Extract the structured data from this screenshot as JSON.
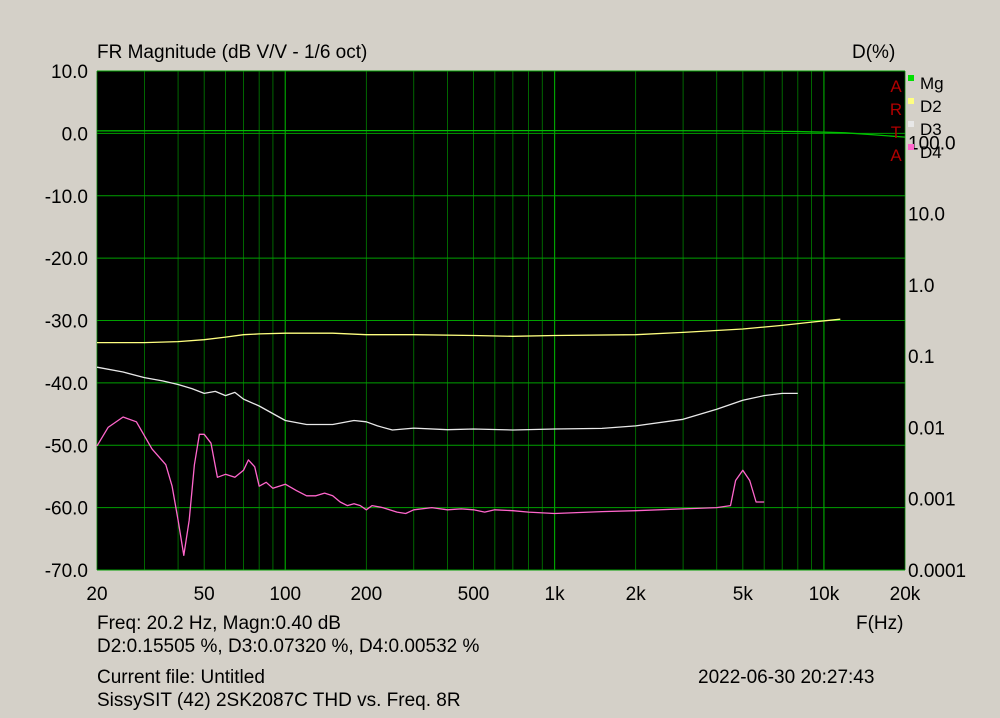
{
  "colors": {
    "background": "#d4d0c8",
    "plot_bg": "#000000",
    "grid": "#008000",
    "grid_major": "#00a000",
    "Mg": "#00c000",
    "D2": "#ffff80",
    "D3": "#e8e8e8",
    "D4": "#ff66cc",
    "arta": "#b00000"
  },
  "header": {
    "title": "FR Magnitude (dB V/V - 1/6 oct)",
    "right_label": "D(%)"
  },
  "watermark": [
    "A",
    "R",
    "T",
    "A"
  ],
  "legend": [
    {
      "name": "Mg",
      "color": "#00e000"
    },
    {
      "name": "D2",
      "color": "#ffff80"
    },
    {
      "name": "D3",
      "color": "#e8e8e8"
    },
    {
      "name": "D4",
      "color": "#ff66cc"
    }
  ],
  "footer": {
    "freq_unit": "F(Hz)",
    "cursor_line": "Freq: 20.2 Hz, Magn:0.40 dB",
    "distortion_line": "D2:0.15505 %, D3:0.07320 %, D4:0.00532 %",
    "current_file": "Current file: Untitled",
    "datetime": "2022-06-30  20:27:43",
    "description": "SissySIT (42) 2SK2087C THD vs.  Freq. 8R"
  },
  "chart_data": {
    "type": "line",
    "x_scale": "log",
    "xlim": [
      20,
      20000
    ],
    "ylim": [
      -70,
      10
    ],
    "y2_scale": "log",
    "y2lim": [
      0.0001,
      1000
    ],
    "grid": true,
    "legend_position": "top-right",
    "x_ticks": [
      {
        "v": 20,
        "label": "20"
      },
      {
        "v": 50,
        "label": "50"
      },
      {
        "v": 100,
        "label": "100"
      },
      {
        "v": 200,
        "label": "200"
      },
      {
        "v": 500,
        "label": "500"
      },
      {
        "v": 1000,
        "label": "1k"
      },
      {
        "v": 2000,
        "label": "2k"
      },
      {
        "v": 5000,
        "label": "5k"
      },
      {
        "v": 10000,
        "label": "10k"
      },
      {
        "v": 20000,
        "label": "20k"
      }
    ],
    "y_ticks": [
      {
        "v": 10,
        "label": "10.0"
      },
      {
        "v": 0,
        "label": "0.0"
      },
      {
        "v": -10,
        "label": "-10.0"
      },
      {
        "v": -20,
        "label": "-20.0"
      },
      {
        "v": -30,
        "label": "-30.0"
      },
      {
        "v": -40,
        "label": "-40.0"
      },
      {
        "v": -50,
        "label": "-50.0"
      },
      {
        "v": -60,
        "label": "-60.0"
      },
      {
        "v": -70,
        "label": "-70.0"
      }
    ],
    "y2_ticks": [
      {
        "v": 100,
        "label": "100.0"
      },
      {
        "v": 10,
        "label": "10.0"
      },
      {
        "v": 1,
        "label": "1.0"
      },
      {
        "v": 0.1,
        "label": "0.1"
      },
      {
        "v": 0.01,
        "label": "0.01"
      },
      {
        "v": 0.001,
        "label": "0.001"
      },
      {
        "v": 0.0001,
        "label": "0.0001"
      }
    ],
    "series": [
      {
        "name": "Mg",
        "color": "#00c000",
        "axis": "left",
        "x": [
          20,
          50,
          100,
          200,
          500,
          1000,
          2000,
          5000,
          8000,
          10000,
          12000,
          15000,
          20000
        ],
        "y": [
          0.4,
          0.45,
          0.45,
          0.45,
          0.45,
          0.45,
          0.45,
          0.4,
          0.3,
          0.2,
          0.1,
          -0.2,
          -0.6
        ]
      },
      {
        "name": "D2",
        "color": "#ffff80",
        "axis": "right",
        "x": [
          20,
          30,
          40,
          50,
          60,
          70,
          80,
          100,
          150,
          200,
          300,
          500,
          700,
          1000,
          2000,
          3000,
          5000,
          7000,
          9000,
          11500
        ],
        "y": [
          0.155,
          0.155,
          0.16,
          0.17,
          0.185,
          0.2,
          0.205,
          0.21,
          0.21,
          0.2,
          0.2,
          0.195,
          0.19,
          0.195,
          0.2,
          0.215,
          0.24,
          0.27,
          0.3,
          0.33
        ]
      },
      {
        "name": "D3",
        "color": "#e8e8e8",
        "axis": "right",
        "x": [
          20,
          25,
          30,
          35,
          40,
          45,
          50,
          55,
          60,
          65,
          70,
          80,
          100,
          120,
          150,
          180,
          200,
          220,
          250,
          300,
          400,
          500,
          700,
          1000,
          1500,
          2000,
          3000,
          4000,
          5000,
          6000,
          7000,
          8000
        ],
        "y": [
          0.07,
          0.06,
          0.05,
          0.045,
          0.04,
          0.035,
          0.03,
          0.032,
          0.028,
          0.031,
          0.025,
          0.02,
          0.0125,
          0.011,
          0.011,
          0.0125,
          0.012,
          0.0105,
          0.0092,
          0.0098,
          0.0093,
          0.0095,
          0.0092,
          0.0095,
          0.0097,
          0.0105,
          0.013,
          0.018,
          0.024,
          0.028,
          0.03,
          0.03
        ]
      },
      {
        "name": "D4",
        "color": "#ff66cc",
        "axis": "right",
        "x": [
          20,
          22,
          25,
          28,
          32,
          36,
          38,
          40,
          42,
          44,
          46,
          48,
          50,
          53,
          56,
          60,
          65,
          70,
          73,
          77,
          80,
          85,
          90,
          100,
          110,
          120,
          130,
          140,
          150,
          160,
          170,
          180,
          190,
          200,
          210,
          230,
          260,
          280,
          300,
          350,
          400,
          450,
          500,
          550,
          600,
          700,
          800,
          1000,
          1500,
          2000,
          3000,
          4000,
          4500,
          4700,
          5000,
          5300,
          5600,
          6000
        ],
        "y": [
          0.0055,
          0.01,
          0.014,
          0.012,
          0.005,
          0.003,
          0.0015,
          0.0005,
          0.00016,
          0.0005,
          0.003,
          0.008,
          0.008,
          0.006,
          0.002,
          0.0022,
          0.002,
          0.0025,
          0.0035,
          0.0028,
          0.0015,
          0.0017,
          0.0014,
          0.0016,
          0.0013,
          0.0011,
          0.0011,
          0.0012,
          0.0011,
          0.0009,
          0.0008,
          0.00085,
          0.0008,
          0.0007,
          0.0008,
          0.00075,
          0.00065,
          0.00062,
          0.0007,
          0.00075,
          0.0007,
          0.00072,
          0.0007,
          0.00065,
          0.0007,
          0.00068,
          0.00065,
          0.00062,
          0.00066,
          0.00068,
          0.00072,
          0.00075,
          0.0008,
          0.0018,
          0.0025,
          0.0018,
          0.0009,
          0.0009
        ]
      }
    ]
  }
}
